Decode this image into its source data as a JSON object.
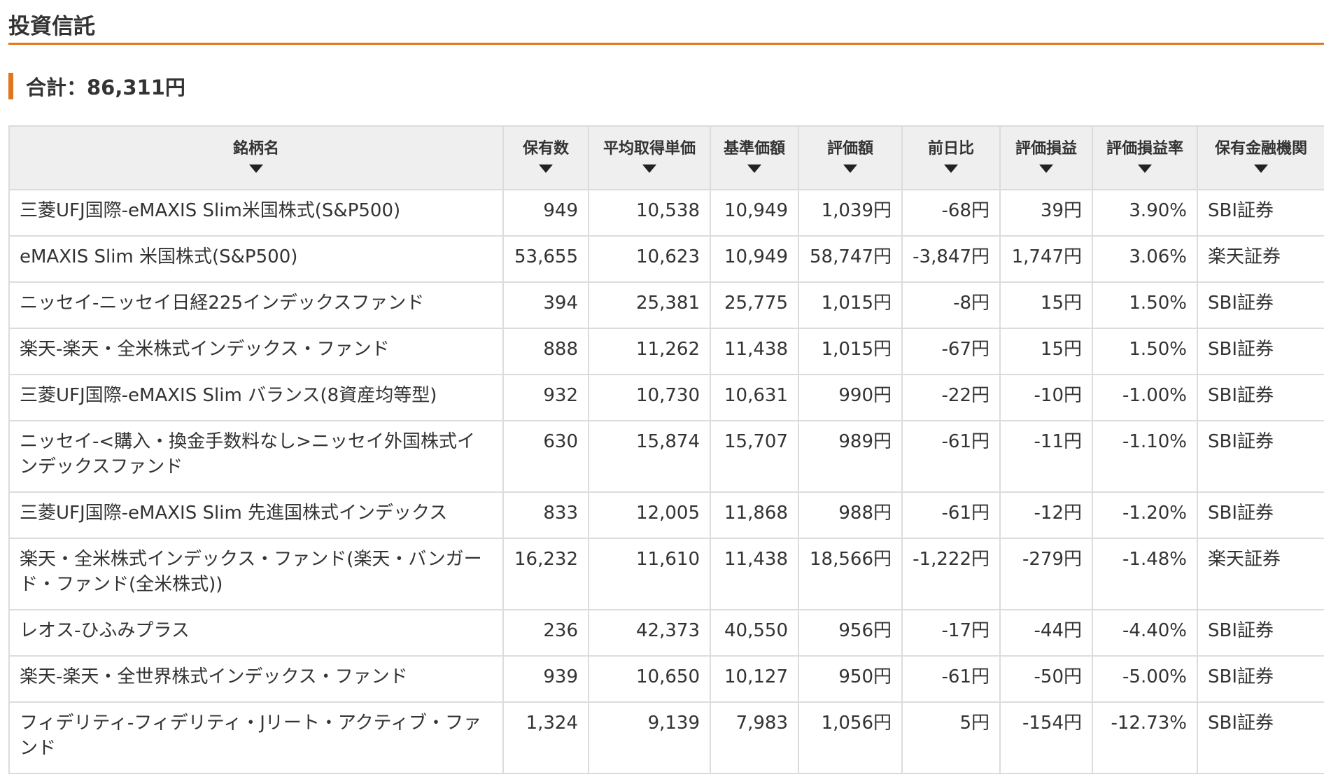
{
  "page": {
    "title": "投資信託",
    "total_label": "合計：86,311円"
  },
  "colors": {
    "accent": "#e0771e",
    "negative": "#c0282c",
    "positive": "#2a63a9",
    "header_bg": "#efefef",
    "border": "#dcdcdc"
  },
  "table": {
    "columns": [
      {
        "label": "銘柄名",
        "sort_icon": "sort-down-triangle-icon"
      },
      {
        "label": "保有数",
        "sort_icon": "sort-down-triangle-icon"
      },
      {
        "label": "平均取得単価",
        "sort_icon": "sort-down-triangle-icon"
      },
      {
        "label": "基準価額",
        "sort_icon": "sort-down-triangle-icon"
      },
      {
        "label": "評価額",
        "sort_icon": "sort-down-triangle-icon"
      },
      {
        "label": "前日比",
        "sort_icon": "sort-down-triangle-icon"
      },
      {
        "label": "評価損益",
        "sort_icon": "sort-down-triangle-icon"
      },
      {
        "label": "評価損益率",
        "sort_icon": "sort-down-triangle-icon"
      },
      {
        "label": "保有金融機関",
        "sort_icon": "sort-down-triangle-icon"
      }
    ],
    "rows": [
      {
        "name": "三菱UFJ国際-eMAXIS Slim米国株式(S&P500)",
        "quantity": "949",
        "avg_cost": "10,538",
        "base_price": "10,949",
        "value": "1,039円",
        "day_change": "-68円",
        "day_change_sign": "neg",
        "gain": "39円",
        "gain_sign": "pos",
        "gain_rate": "3.90%",
        "institution": "SBI証券",
        "lines": 1
      },
      {
        "name": "eMAXIS Slim 米国株式(S&P500)",
        "quantity": "53,655",
        "avg_cost": "10,623",
        "base_price": "10,949",
        "value": "58,747円",
        "day_change": "-3,847円",
        "day_change_sign": "neg",
        "gain": "1,747円",
        "gain_sign": "pos",
        "gain_rate": "3.06%",
        "institution": "楽天証券",
        "lines": 1
      },
      {
        "name": "ニッセイ-ニッセイ日経225インデックスファンド",
        "quantity": "394",
        "avg_cost": "25,381",
        "base_price": "25,775",
        "value": "1,015円",
        "day_change": "-8円",
        "day_change_sign": "neg",
        "gain": "15円",
        "gain_sign": "pos",
        "gain_rate": "1.50%",
        "institution": "SBI証券",
        "lines": 1
      },
      {
        "name": "楽天-楽天・全米株式インデックス・ファンド",
        "quantity": "888",
        "avg_cost": "11,262",
        "base_price": "11,438",
        "value": "1,015円",
        "day_change": "-67円",
        "day_change_sign": "neg",
        "gain": "15円",
        "gain_sign": "pos",
        "gain_rate": "1.50%",
        "institution": "SBI証券",
        "lines": 1
      },
      {
        "name": "三菱UFJ国際-eMAXIS Slim バランス(8資産均等型)",
        "quantity": "932",
        "avg_cost": "10,730",
        "base_price": "10,631",
        "value": "990円",
        "day_change": "-22円",
        "day_change_sign": "neg",
        "gain": "-10円",
        "gain_sign": "neg",
        "gain_rate": "-1.00%",
        "institution": "SBI証券",
        "lines": 1
      },
      {
        "name": "ニッセイ-<購入・換金手数料なし>ニッセイ外国株式インデックスファンド",
        "quantity": "630",
        "avg_cost": "15,874",
        "base_price": "15,707",
        "value": "989円",
        "day_change": "-61円",
        "day_change_sign": "neg",
        "gain": "-11円",
        "gain_sign": "neg",
        "gain_rate": "-1.10%",
        "institution": "SBI証券",
        "lines": 2
      },
      {
        "name": "三菱UFJ国際-eMAXIS Slim 先進国株式インデックス",
        "quantity": "833",
        "avg_cost": "12,005",
        "base_price": "11,868",
        "value": "988円",
        "day_change": "-61円",
        "day_change_sign": "neg",
        "gain": "-12円",
        "gain_sign": "neg",
        "gain_rate": "-1.20%",
        "institution": "SBI証券",
        "lines": 1
      },
      {
        "name": "楽天・全米株式インデックス・ファンド(楽天・バンガード・ファンド(全米株式))",
        "quantity": "16,232",
        "avg_cost": "11,610",
        "base_price": "11,438",
        "value": "18,566円",
        "day_change": "-1,222円",
        "day_change_sign": "neg",
        "gain": "-279円",
        "gain_sign": "neg",
        "gain_rate": "-1.48%",
        "institution": "楽天証券",
        "lines": 2
      },
      {
        "name": "レオス-ひふみプラス",
        "quantity": "236",
        "avg_cost": "42,373",
        "base_price": "40,550",
        "value": "956円",
        "day_change": "-17円",
        "day_change_sign": "neg",
        "gain": "-44円",
        "gain_sign": "neg",
        "gain_rate": "-4.40%",
        "institution": "SBI証券",
        "lines": 1
      },
      {
        "name": "楽天-楽天・全世界株式インデックス・ファンド",
        "quantity": "939",
        "avg_cost": "10,650",
        "base_price": "10,127",
        "value": "950円",
        "day_change": "-61円",
        "day_change_sign": "neg",
        "gain": "-50円",
        "gain_sign": "neg",
        "gain_rate": "-5.00%",
        "institution": "SBI証券",
        "lines": 1
      },
      {
        "name": "フィデリティ-フィデリティ・Jリート・アクティブ・ファンド",
        "quantity": "1,324",
        "avg_cost": "9,139",
        "base_price": "7,983",
        "value": "1,056円",
        "day_change": "5円",
        "day_change_sign": "pos",
        "gain": "-154円",
        "gain_sign": "neg",
        "gain_rate": "-12.73%",
        "institution": "SBI証券",
        "lines": 2
      }
    ]
  }
}
